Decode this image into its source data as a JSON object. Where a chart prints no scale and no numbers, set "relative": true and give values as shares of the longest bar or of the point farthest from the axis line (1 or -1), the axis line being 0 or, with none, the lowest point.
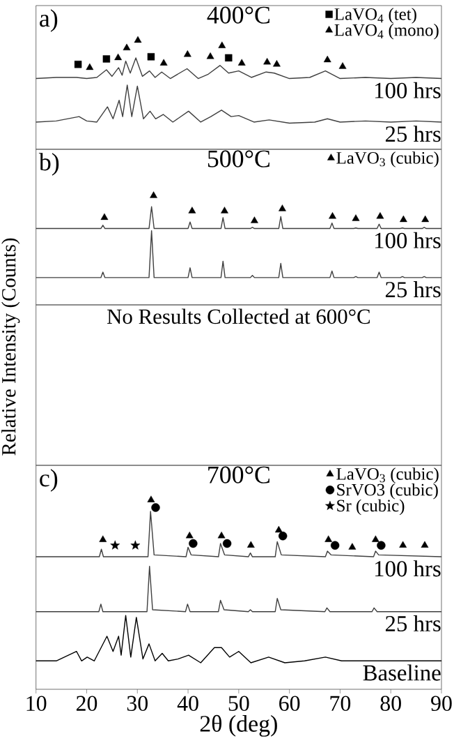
{
  "chart_data": [
    {
      "type": "line",
      "title": "400°C",
      "annotations": [
        "a)"
      ],
      "relative": true,
      "xlim": [
        10,
        90
      ],
      "legend": "top right",
      "series": [
        {
          "name": "100 hrs",
          "color": "#3f3f3f",
          "x": [
            10,
            14,
            18,
            20,
            22,
            23.9,
            25,
            26.3,
            27,
            27.7,
            28.6,
            29.7,
            31,
            32.4,
            33.5,
            34.8,
            36.5,
            39.8,
            42,
            44,
            46.3,
            48,
            50,
            52.5,
            55.4,
            57,
            60,
            64,
            67.1,
            70,
            75,
            80,
            85,
            90
          ],
          "values": [
            0.65,
            0.66,
            0.66,
            0.65,
            0.66,
            0.73,
            0.67,
            0.75,
            0.68,
            0.81,
            0.7,
            0.84,
            0.67,
            0.72,
            0.66,
            0.71,
            0.65,
            0.74,
            0.65,
            0.69,
            0.77,
            0.7,
            0.72,
            0.66,
            0.71,
            0.7,
            0.65,
            0.66,
            0.72,
            0.65,
            0.66,
            0.65,
            0.66,
            0.65
          ]
        },
        {
          "name": "25 hrs",
          "color": "#3f3f3f",
          "x": [
            10,
            14,
            18.5,
            20,
            22,
            24.1,
            25.2,
            26.4,
            27.1,
            28.0,
            28.9,
            30.0,
            31.2,
            32.5,
            33.6,
            35.1,
            37,
            40.1,
            42.5,
            44.5,
            46.6,
            48.5,
            50,
            53,
            56,
            60,
            65,
            67.5,
            70,
            75,
            80,
            85,
            90
          ],
          "values": [
            0.25,
            0.26,
            0.3,
            0.26,
            0.25,
            0.39,
            0.28,
            0.45,
            0.3,
            0.59,
            0.3,
            0.58,
            0.28,
            0.35,
            0.28,
            0.32,
            0.25,
            0.35,
            0.25,
            0.3,
            0.36,
            0.3,
            0.31,
            0.25,
            0.27,
            0.24,
            0.25,
            0.28,
            0.25,
            0.26,
            0.25,
            0.26,
            0.25
          ]
        },
        {
          "name": "LaVO$_{4}$ (tet)",
          "type": "scatter",
          "marker": "square",
          "color": "#000000",
          "x": [
            18.3,
            23.9,
            32.7,
            48.0
          ],
          "values": [
            0.78,
            0.83,
            0.85,
            0.84
          ]
        },
        {
          "name": "LaVO$_{4}$ (mono)",
          "type": "scatter",
          "marker": "triangle",
          "color": "#000000",
          "x": [
            20.6,
            26.2,
            27.9,
            30.1,
            35.2,
            39.9,
            44.4,
            46.7,
            50.6,
            55.6,
            57.5,
            67.5,
            70.5
          ],
          "values": [
            0.75,
            0.84,
            0.93,
            1.0,
            0.79,
            0.87,
            0.85,
            0.95,
            0.79,
            0.8,
            0.78,
            0.82,
            0.76
          ]
        }
      ]
    },
    {
      "type": "line",
      "title": "500°C",
      "annotations": [
        "b)"
      ],
      "relative": true,
      "xlim": [
        10,
        90
      ],
      "legend": "top right",
      "series": [
        {
          "name": "100 hrs",
          "color": "#3f3f3f",
          "x": [
            10,
            22.8,
            23.2,
            23.6,
            32.3,
            32.8,
            33.3,
            40.0,
            40.4,
            40.8,
            46.5,
            46.9,
            47.3,
            52.3,
            52.7,
            53.1,
            57.9,
            58.3,
            58.7,
            68.0,
            68.4,
            68.8,
            72.7,
            73.1,
            73.5,
            77.3,
            77.7,
            78.1,
            81.9,
            82.3,
            82.7,
            86.2,
            86.6,
            87.0,
            90
          ],
          "values": [
            0.7,
            0.7,
            0.73,
            0.7,
            0.7,
            0.9,
            0.7,
            0.7,
            0.76,
            0.7,
            0.7,
            0.8,
            0.7,
            0.7,
            0.71,
            0.7,
            0.7,
            0.81,
            0.7,
            0.7,
            0.75,
            0.7,
            0.7,
            0.705,
            0.7,
            0.7,
            0.74,
            0.7,
            0.7,
            0.705,
            0.7,
            0.7,
            0.71,
            0.7,
            0.7
          ]
        },
        {
          "name": "25 hrs",
          "color": "#3f3f3f",
          "x": [
            10,
            22.8,
            23.2,
            23.6,
            32.3,
            32.8,
            33.3,
            40.0,
            40.4,
            40.8,
            46.5,
            46.9,
            47.3,
            52.3,
            52.7,
            53.1,
            57.9,
            58.3,
            58.7,
            68.0,
            68.4,
            68.8,
            72.7,
            73.1,
            73.5,
            77.3,
            77.7,
            78.1,
            81.9,
            82.3,
            82.7,
            86.2,
            86.6,
            87.0,
            90
          ],
          "values": [
            0.25,
            0.25,
            0.3,
            0.25,
            0.25,
            0.68,
            0.25,
            0.25,
            0.34,
            0.25,
            0.25,
            0.4,
            0.25,
            0.25,
            0.27,
            0.25,
            0.25,
            0.38,
            0.25,
            0.25,
            0.31,
            0.25,
            0.25,
            0.26,
            0.25,
            0.25,
            0.3,
            0.25,
            0.25,
            0.26,
            0.25,
            0.25,
            0.26,
            0.25,
            0.25
          ]
        },
        {
          "name": "LaVO$_{3}$ (cubic)",
          "type": "scatter",
          "marker": "triangle",
          "color": "#000000",
          "x": [
            23.5,
            33.2,
            40.8,
            47.2,
            53.1,
            58.6,
            68.5,
            73.1,
            77.9,
            82.5,
            86.8
          ],
          "values": [
            0.8,
            1.0,
            0.86,
            0.86,
            0.77,
            0.88,
            0.81,
            0.79,
            0.81,
            0.78,
            0.78
          ]
        }
      ]
    },
    {
      "type": "other",
      "title": "No Results Collected at 600°C",
      "ylabel": "Relative Intensity (Counts)"
    },
    {
      "type": "line",
      "title": "700°C",
      "annotations": [
        "c)"
      ],
      "relative": true,
      "xlim": [
        10,
        90
      ],
      "xticks": [
        10,
        20,
        30,
        40,
        50,
        60,
        70,
        80,
        90
      ],
      "xlabel": "2θ (deg)",
      "legend": "top right",
      "series": [
        {
          "name": "100 hrs",
          "color": "#3f3f3f",
          "x": [
            10,
            22.5,
            22.9,
            23.3,
            32.1,
            32.6,
            33.3,
            39.6,
            40.0,
            40.6,
            46.0,
            46.4,
            47.2,
            51.9,
            52.3,
            52.7,
            57.2,
            57.6,
            58.4,
            67.1,
            67.5,
            68.2,
            76.6,
            77.0,
            77.6,
            90
          ],
          "values": [
            0.7,
            0.7,
            0.74,
            0.7,
            0.7,
            0.94,
            0.71,
            0.7,
            0.75,
            0.71,
            0.7,
            0.77,
            0.71,
            0.7,
            0.72,
            0.7,
            0.7,
            0.78,
            0.71,
            0.7,
            0.73,
            0.71,
            0.7,
            0.73,
            0.71,
            0.7
          ]
        },
        {
          "name": "25 hrs",
          "color": "#3f3f3f",
          "x": [
            10,
            22.4,
            22.8,
            23.2,
            31.9,
            32.4,
            33.0,
            39.5,
            39.9,
            40.4,
            46.0,
            46.4,
            47.1,
            51.9,
            52.3,
            52.7,
            57.2,
            57.6,
            58.3,
            67.0,
            67.4,
            68.0,
            76.3,
            76.7,
            77.3,
            90
          ],
          "values": [
            0.41,
            0.41,
            0.45,
            0.41,
            0.41,
            0.65,
            0.42,
            0.41,
            0.45,
            0.41,
            0.41,
            0.47,
            0.42,
            0.41,
            0.42,
            0.41,
            0.41,
            0.48,
            0.42,
            0.41,
            0.43,
            0.41,
            0.41,
            0.43,
            0.41,
            0.41
          ]
        },
        {
          "name": "Baseline",
          "color": "#000000",
          "x": [
            10,
            14,
            18.0,
            19.0,
            20.1,
            21.5,
            24.0,
            25.2,
            26.3,
            26.8,
            27.7,
            28.7,
            29.8,
            31.1,
            32.3,
            33.5,
            34.9,
            36.1,
            38,
            40.1,
            42.5,
            45.2,
            46.6,
            48.2,
            50,
            52.4,
            55.9,
            59.1,
            63,
            67.1,
            70.3,
            75,
            80,
            85,
            90
          ],
          "values": [
            0.15,
            0.15,
            0.2,
            0.15,
            0.17,
            0.15,
            0.28,
            0.2,
            0.28,
            0.18,
            0.39,
            0.17,
            0.38,
            0.16,
            0.24,
            0.15,
            0.19,
            0.15,
            0.16,
            0.18,
            0.14,
            0.22,
            0.22,
            0.17,
            0.2,
            0.14,
            0.17,
            0.14,
            0.15,
            0.17,
            0.15,
            0.15,
            0.15,
            0.15,
            0.15
          ]
        },
        {
          "name": "LaVO$_{3}$ (cubic)",
          "type": "scatter",
          "marker": "triangle",
          "color": "#000000",
          "x": [
            23.2,
            32.7,
            40.3,
            46.6,
            52.4,
            57.9,
            67.7,
            72.4,
            77.0,
            82.4,
            86.7
          ],
          "values": [
            0.79,
            1.0,
            0.81,
            0.81,
            0.76,
            0.84,
            0.79,
            0.75,
            0.79,
            0.76,
            0.76
          ]
        },
        {
          "name": "SrVO3 (cubic)",
          "type": "scatter",
          "marker": "circle",
          "color": "#000000",
          "x": [
            33.6,
            41.0,
            47.7,
            58.7,
            69.0,
            78.1
          ],
          "values": [
            0.96,
            0.77,
            0.77,
            0.81,
            0.76,
            0.76
          ]
        },
        {
          "name": "Sr (cubic)",
          "type": "scatter",
          "marker": "star",
          "color": "#000000",
          "x": [
            25.6,
            29.6
          ],
          "values": [
            0.76,
            0.76
          ]
        }
      ]
    }
  ]
}
